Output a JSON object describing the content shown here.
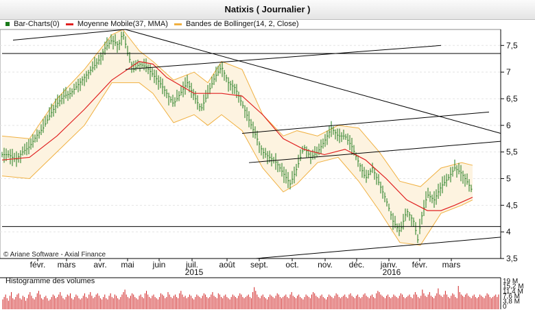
{
  "window": {
    "title": "Natixis  ( Journalier )"
  },
  "legend": {
    "bar": "Bar-Charts(0)",
    "ma": "Moyenne Mobile(37, MMA)",
    "bb": "Bandes de Bollinger(14, 2, Close)"
  },
  "copyright": "© Ariane Software - Axial Finance",
  "volume_title": "Histogramme des volumes",
  "colors": {
    "bars": "#1a7a1a",
    "ma": "#e02020",
    "bb_line": "#f0b040",
    "bb_fill": "#fdf3e0",
    "trend": "#000000",
    "volume": "#d02020"
  },
  "chart_data": {
    "type": "line",
    "price_axis": {
      "ticks": [
        "3,5",
        "4",
        "4,5",
        "5",
        "5,5",
        "6",
        "6,5",
        "7",
        "7,5"
      ],
      "ylim": [
        3.5,
        7.8
      ]
    },
    "x_axis": {
      "months": [
        "févr.",
        "mars",
        "avr.",
        "mai",
        "juin",
        "juil.",
        "août",
        "sept.",
        "oct.",
        "nov.",
        "déc.",
        "janv.",
        "févr.",
        "mars"
      ],
      "years": [
        "2015",
        "2016"
      ]
    },
    "series": [
      {
        "name": "Bar-Charts(0)",
        "points": [
          [
            0,
            5.45
          ],
          [
            5,
            5.45
          ],
          [
            10,
            5.35
          ],
          [
            15,
            5.5
          ],
          [
            20,
            5.6
          ],
          [
            25,
            5.8
          ],
          [
            30,
            5.95
          ],
          [
            35,
            6.2
          ],
          [
            40,
            6.4
          ],
          [
            45,
            6.55
          ],
          [
            50,
            6.6
          ],
          [
            55,
            6.75
          ],
          [
            60,
            6.9
          ],
          [
            65,
            7.05
          ],
          [
            70,
            7.2
          ],
          [
            75,
            7.45
          ],
          [
            80,
            7.6
          ],
          [
            85,
            7.5
          ],
          [
            88,
            7.75
          ],
          [
            92,
            7.3
          ],
          [
            96,
            7.05
          ],
          [
            100,
            7.15
          ],
          [
            105,
            7.1
          ],
          [
            110,
            6.95
          ],
          [
            115,
            6.8
          ],
          [
            120,
            6.6
          ],
          [
            125,
            6.4
          ],
          [
            130,
            6.6
          ],
          [
            135,
            6.8
          ],
          [
            140,
            6.55
          ],
          [
            145,
            6.3
          ],
          [
            150,
            6.6
          ],
          [
            155,
            6.9
          ],
          [
            160,
            7.1
          ],
          [
            165,
            6.8
          ],
          [
            170,
            6.7
          ],
          [
            175,
            6.4
          ],
          [
            180,
            6.1
          ],
          [
            185,
            5.8
          ],
          [
            190,
            5.5
          ],
          [
            195,
            5.4
          ],
          [
            200,
            5.3
          ],
          [
            205,
            5.1
          ],
          [
            210,
            4.9
          ],
          [
            215,
            5.2
          ],
          [
            220,
            5.6
          ],
          [
            225,
            5.4
          ],
          [
            230,
            5.5
          ],
          [
            235,
            5.7
          ],
          [
            240,
            5.95
          ],
          [
            245,
            5.8
          ],
          [
            250,
            5.8
          ],
          [
            255,
            5.6
          ],
          [
            260,
            5.3
          ],
          [
            265,
            5.0
          ],
          [
            270,
            5.2
          ],
          [
            275,
            4.9
          ],
          [
            280,
            4.6
          ],
          [
            285,
            4.2
          ],
          [
            290,
            4.0
          ],
          [
            295,
            4.4
          ],
          [
            300,
            4.2
          ],
          [
            303,
            3.85
          ],
          [
            306,
            4.3
          ],
          [
            310,
            4.7
          ],
          [
            315,
            4.6
          ],
          [
            320,
            4.85
          ],
          [
            325,
            5.0
          ],
          [
            330,
            5.2
          ],
          [
            335,
            5.1
          ],
          [
            340,
            4.9
          ],
          [
            343,
            4.75
          ]
        ]
      },
      {
        "name": "Moyenne Mobile(37, MMA)",
        "points": [
          [
            0,
            5.35
          ],
          [
            20,
            5.4
          ],
          [
            40,
            5.8
          ],
          [
            60,
            6.3
          ],
          [
            80,
            6.85
          ],
          [
            100,
            7.2
          ],
          [
            110,
            7.15
          ],
          [
            120,
            6.9
          ],
          [
            140,
            6.6
          ],
          [
            160,
            6.6
          ],
          [
            175,
            6.55
          ],
          [
            190,
            6.2
          ],
          [
            205,
            5.75
          ],
          [
            220,
            5.55
          ],
          [
            235,
            5.45
          ],
          [
            250,
            5.55
          ],
          [
            265,
            5.35
          ],
          [
            280,
            5.0
          ],
          [
            295,
            4.6
          ],
          [
            310,
            4.4
          ],
          [
            320,
            4.4
          ],
          [
            330,
            4.5
          ],
          [
            343,
            4.65
          ]
        ]
      },
      {
        "name": "Bandes de Bollinger(14, 2, Close)",
        "upper": [
          [
            0,
            5.8
          ],
          [
            20,
            5.75
          ],
          [
            40,
            6.5
          ],
          [
            60,
            7.05
          ],
          [
            80,
            7.7
          ],
          [
            88,
            7.8
          ],
          [
            100,
            7.4
          ],
          [
            110,
            7.2
          ],
          [
            125,
            6.85
          ],
          [
            140,
            7.0
          ],
          [
            150,
            6.8
          ],
          [
            160,
            7.2
          ],
          [
            175,
            7.05
          ],
          [
            190,
            6.2
          ],
          [
            205,
            5.8
          ],
          [
            215,
            5.9
          ],
          [
            230,
            5.8
          ],
          [
            245,
            6.0
          ],
          [
            260,
            5.95
          ],
          [
            275,
            5.5
          ],
          [
            290,
            4.95
          ],
          [
            305,
            4.85
          ],
          [
            320,
            5.2
          ],
          [
            335,
            5.3
          ],
          [
            343,
            5.25
          ]
        ],
        "lower": [
          [
            0,
            5.05
          ],
          [
            20,
            5.0
          ],
          [
            40,
            5.5
          ],
          [
            60,
            6.0
          ],
          [
            80,
            6.8
          ],
          [
            100,
            6.8
          ],
          [
            110,
            6.6
          ],
          [
            125,
            6.05
          ],
          [
            140,
            6.2
          ],
          [
            150,
            6.0
          ],
          [
            160,
            6.2
          ],
          [
            175,
            5.9
          ],
          [
            190,
            5.2
          ],
          [
            205,
            4.75
          ],
          [
            215,
            4.9
          ],
          [
            230,
            5.3
          ],
          [
            245,
            5.4
          ],
          [
            260,
            4.95
          ],
          [
            275,
            4.4
          ],
          [
            290,
            3.8
          ],
          [
            305,
            3.75
          ],
          [
            320,
            4.35
          ],
          [
            335,
            4.5
          ],
          [
            343,
            4.6
          ]
        ]
      }
    ],
    "trend_lines": [
      [
        [
          8,
          7.6
        ],
        [
          90,
          7.8
        ]
      ],
      [
        [
          90,
          7.8
        ],
        [
          390,
          5.85
        ]
      ],
      [
        [
          0,
          7.35
        ],
        [
          390,
          7.35
        ]
      ],
      [
        [
          0,
          4.1
        ],
        [
          390,
          4.1
        ]
      ],
      [
        [
          90,
          7.05
        ],
        [
          320,
          7.5
        ]
      ],
      [
        [
          175,
          5.85
        ],
        [
          355,
          6.25
        ]
      ],
      [
        [
          180,
          5.3
        ],
        [
          390,
          5.7
        ]
      ],
      [
        [
          185,
          3.5
        ],
        [
          390,
          3.9
        ]
      ]
    ],
    "volume": {
      "ticks": [
        "19 M",
        "15,2 M",
        "11,4 M",
        "7,6 M",
        "3,8 M",
        "0"
      ],
      "ylim": [
        0,
        19
      ],
      "values": [
        8,
        10,
        12,
        9,
        7,
        11,
        14,
        9,
        8,
        10,
        12,
        13,
        9,
        8,
        11,
        10,
        7,
        9,
        12,
        14,
        11,
        9,
        8,
        10,
        13,
        15,
        12,
        9,
        8,
        10,
        11,
        9,
        7,
        8,
        10,
        12,
        11,
        9,
        10,
        12,
        14,
        11,
        9,
        8,
        10,
        12,
        11,
        13,
        9,
        8,
        10,
        12,
        11,
        9,
        8,
        9,
        11,
        13,
        10,
        9,
        12,
        14,
        11,
        9,
        10,
        12,
        13,
        11,
        9,
        8,
        10,
        12,
        9,
        8,
        11,
        13,
        10,
        9,
        12,
        11,
        9,
        8,
        10,
        12,
        14,
        16,
        12,
        10,
        9,
        11,
        13,
        12,
        10,
        9,
        8,
        11,
        12,
        10,
        9,
        13,
        15,
        12,
        10,
        9,
        11,
        12,
        10,
        9,
        8,
        10,
        13,
        12,
        11,
        9,
        10,
        14,
        12,
        10,
        9,
        11,
        12,
        10,
        9,
        13,
        15,
        12,
        10,
        11,
        9,
        10,
        12,
        11,
        9,
        8,
        10,
        12,
        11,
        10,
        9,
        11,
        13,
        12,
        10,
        9,
        10,
        12,
        14,
        11,
        10,
        9,
        13,
        12,
        10,
        9,
        11,
        12,
        10,
        9,
        8,
        10,
        12,
        11,
        10,
        9,
        11,
        13,
        12,
        10,
        9,
        10,
        11,
        12,
        10,
        9,
        14,
        18,
        15,
        12,
        10,
        9,
        11,
        12,
        10,
        9,
        8,
        10,
        12,
        11,
        10,
        9,
        11,
        13,
        12,
        10,
        9,
        10,
        11,
        12,
        10,
        9,
        12,
        14,
        11,
        10,
        9,
        11,
        12,
        10,
        9,
        8,
        10,
        12,
        11,
        10,
        9,
        12,
        14,
        13,
        11,
        10,
        9,
        11,
        12,
        10,
        9,
        8,
        10,
        12,
        11,
        10,
        9,
        11,
        13,
        12,
        10,
        9,
        10,
        11,
        12,
        10,
        9,
        12,
        13,
        11,
        10,
        9,
        11,
        12,
        10,
        9,
        10,
        12,
        13,
        11,
        10,
        9,
        11,
        12,
        10,
        9,
        13,
        15,
        14,
        12,
        11,
        10,
        9,
        11,
        12,
        10,
        9,
        10,
        12,
        11,
        10,
        9,
        11,
        13,
        12,
        10,
        9,
        10,
        11,
        12,
        10,
        9,
        12,
        14,
        12,
        10,
        9,
        11,
        16,
        13,
        11,
        10,
        12,
        14,
        11,
        10,
        9,
        11,
        13,
        17,
        12,
        11,
        10,
        12,
        15,
        12,
        10,
        9,
        11,
        13,
        12,
        10,
        9,
        19,
        14,
        12,
        11,
        10,
        12,
        13,
        11,
        10,
        9,
        11,
        12,
        10,
        9,
        10,
        12,
        11,
        10,
        9,
        11,
        13,
        12,
        10,
        9,
        10,
        11,
        12,
        10,
        12
      ]
    }
  }
}
